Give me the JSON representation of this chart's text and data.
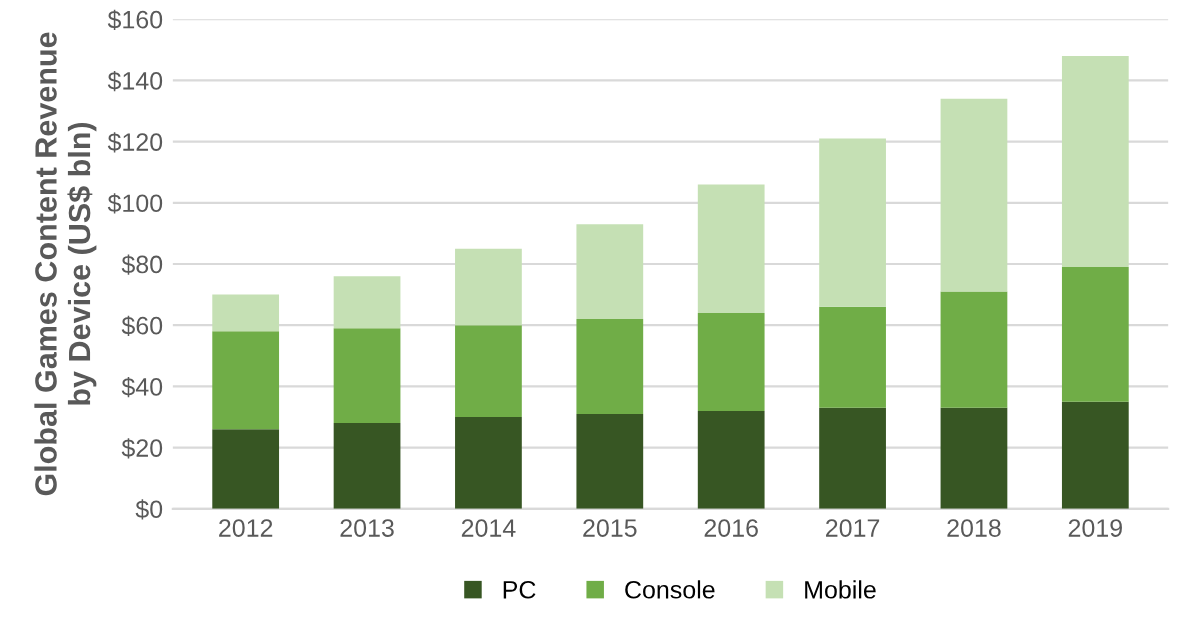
{
  "chart_data": {
    "type": "bar",
    "stacked": true,
    "ylabel": "Global Games Content Revenue\nby Device (US$ bln)",
    "categories": [
      "2012",
      "2013",
      "2014",
      "2015",
      "2016",
      "2017",
      "2018",
      "2019"
    ],
    "series": [
      {
        "name": "PC",
        "color": "#375623",
        "values": [
          26,
          28,
          30,
          31,
          32,
          33,
          33,
          35
        ]
      },
      {
        "name": "Console",
        "color": "#70ad47",
        "values": [
          32,
          31,
          30,
          31,
          32,
          33,
          38,
          44
        ]
      },
      {
        "name": "Mobile",
        "color": "#c5e0b4",
        "values": [
          12,
          17,
          25,
          31,
          42,
          55,
          63,
          69
        ]
      }
    ],
    "ylim": [
      0,
      160
    ],
    "yticks": [
      {
        "value": 0,
        "label": "$0"
      },
      {
        "value": 20,
        "label": "$20"
      },
      {
        "value": 40,
        "label": "$40"
      },
      {
        "value": 60,
        "label": "$60"
      },
      {
        "value": 80,
        "label": "$80"
      },
      {
        "value": 100,
        "label": "$100"
      },
      {
        "value": 120,
        "label": "$120"
      },
      {
        "value": 140,
        "label": "$140"
      },
      {
        "value": 160,
        "label": "$160"
      }
    ],
    "grid": "y",
    "legend": "bottom"
  }
}
